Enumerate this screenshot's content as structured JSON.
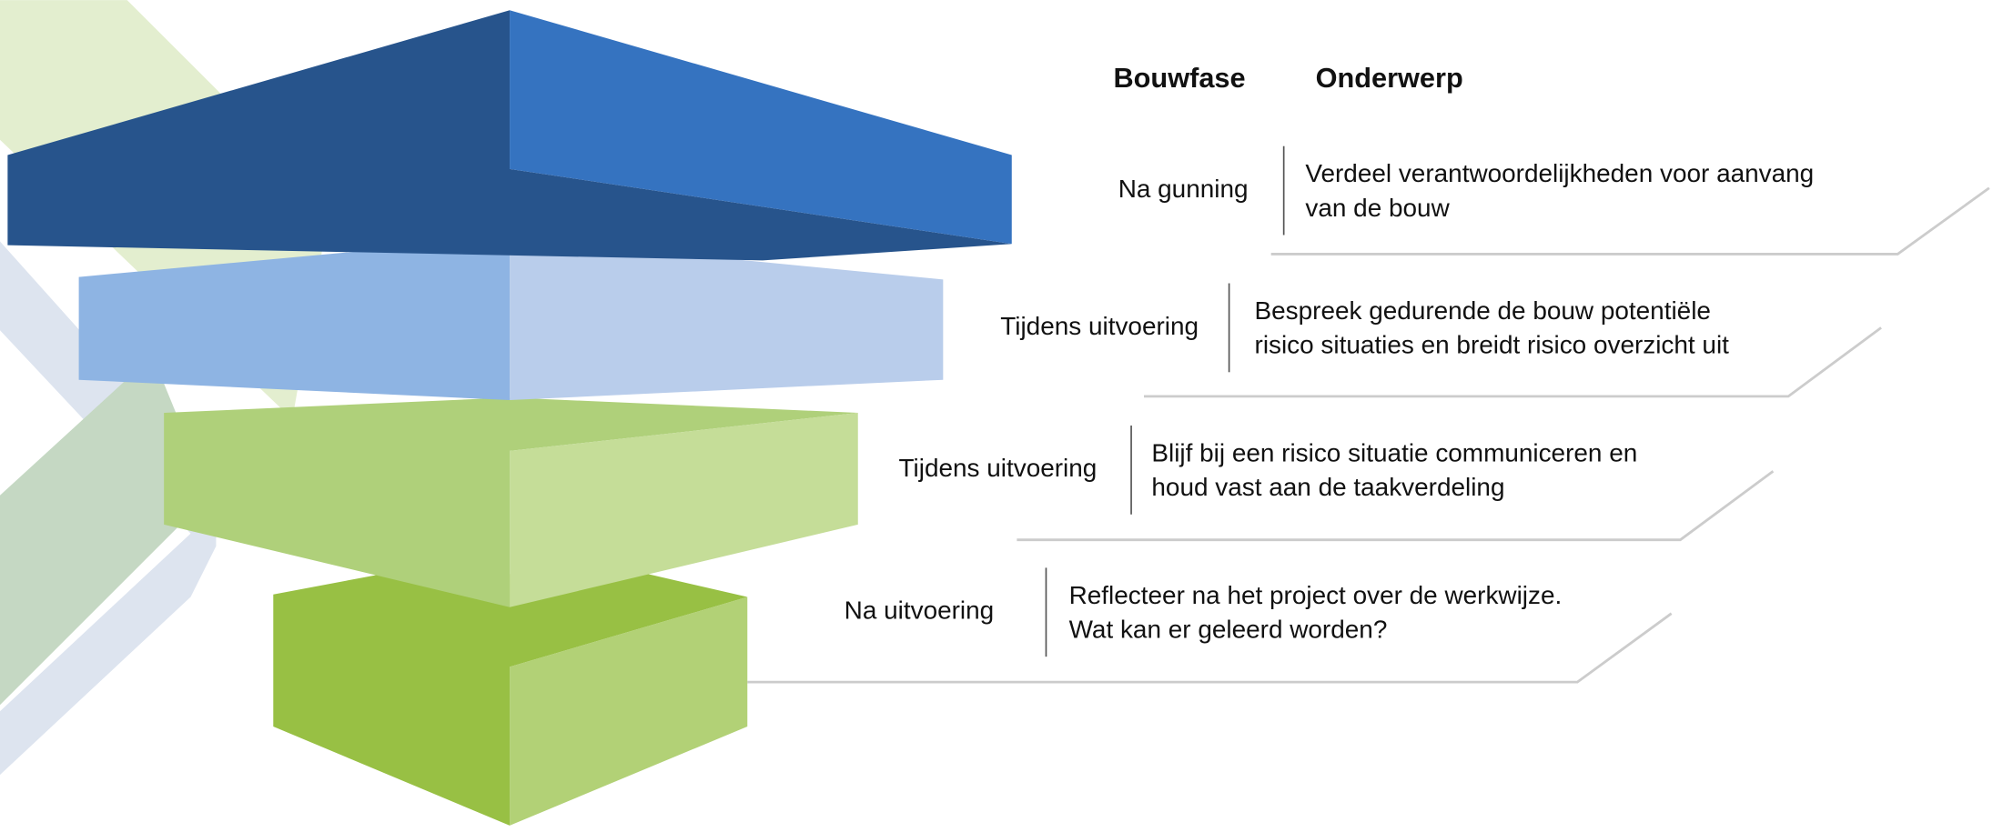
{
  "header": {
    "columns": [
      "Bouwfase",
      "Onderwerp"
    ]
  },
  "rows": [
    {
      "phase": "Na gunning",
      "topic": [
        "Verdeel verantwoordelijkheden voor aanvang",
        "van de bouw"
      ]
    },
    {
      "phase": "Tijdens uitvoering",
      "topic": [
        "Bespreek gedurende de bouw potentiële",
        "risico situaties en breidt risico overzicht uit"
      ]
    },
    {
      "phase": "Tijdens uitvoering",
      "topic": [
        "Blijf bij een risico situatie communiceren en",
        "houd vast aan de taakverdeling"
      ]
    },
    {
      "phase": "Na uitvoering",
      "topic": [
        "Reflecteer na het project over de werkwijze.",
        "Wat kan er geleerd worden?"
      ]
    }
  ]
}
